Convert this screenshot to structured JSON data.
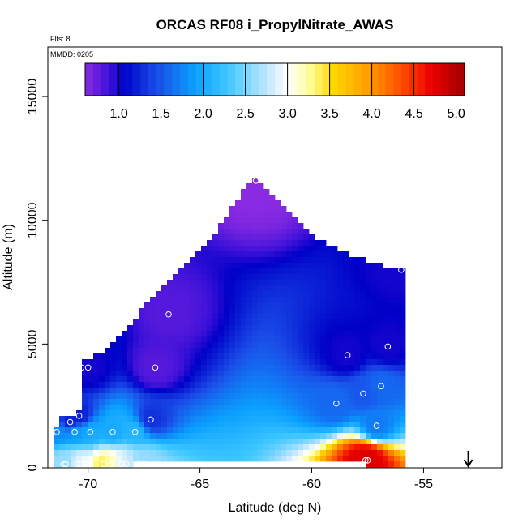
{
  "chart_data": {
    "type": "heatmap",
    "title": "ORCAS RF08 i_PropylNitrate_AWAS",
    "flights_note": "Flts: 8",
    "date_note": "MMDD: 0205",
    "xlabel": "Latitude (deg N)",
    "ylabel": "Altitude (m)",
    "xlim": [
      -71.8,
      -51.5
    ],
    "ylim": [
      0,
      17000
    ],
    "x_ticks": [
      -70,
      -65,
      -60,
      -55
    ],
    "x_tick_labels": [
      "-70",
      "-65",
      "-60",
      "-55"
    ],
    "y_ticks": [
      0,
      5000,
      10000,
      15000
    ],
    "y_tick_labels": [
      "0",
      "5000",
      "10000",
      "15000"
    ],
    "colorbar": {
      "range": [
        0.6,
        5.1
      ],
      "ticks": [
        1.0,
        1.5,
        2.0,
        2.5,
        3.0,
        3.5,
        4.0,
        4.5,
        5.0
      ],
      "tick_labels": [
        "1.0",
        "1.5",
        "2.0",
        "2.5",
        "3.0",
        "3.5",
        "4.0",
        "4.5",
        "5.0"
      ],
      "stops": [
        {
          "v": 0.6,
          "color": "#8a2be2"
        },
        {
          "v": 0.9,
          "color": "#3a10d8"
        },
        {
          "v": 1.05,
          "color": "#0000c8"
        },
        {
          "v": 1.45,
          "color": "#1a4de8"
        },
        {
          "v": 1.9,
          "color": "#0aa0ff"
        },
        {
          "v": 2.3,
          "color": "#40c8ff"
        },
        {
          "v": 2.75,
          "color": "#bfe6ff"
        },
        {
          "v": 3.0,
          "color": "#ffffff"
        },
        {
          "v": 3.25,
          "color": "#ffffa0"
        },
        {
          "v": 3.55,
          "color": "#ffd700"
        },
        {
          "v": 3.9,
          "color": "#ffa500"
        },
        {
          "v": 4.3,
          "color": "#ff5a00"
        },
        {
          "v": 4.7,
          "color": "#ee0000"
        },
        {
          "v": 5.1,
          "color": "#a00000"
        }
      ]
    },
    "domain_envelope": {
      "note": "approximate top altitude (m) of the interpolated field at each latitude",
      "lat": [
        -71.5,
        -71.2,
        -70.4,
        -70.3,
        -69.5,
        -68.5,
        -67.5,
        -66.5,
        -65.5,
        -64.5,
        -63.5,
        -62.8,
        -62.5,
        -62.2,
        -61.5,
        -60.5,
        -59.5,
        -58.5,
        -57.5,
        -56.8,
        -56.5,
        -56.2,
        -55.8
      ],
      "top_m": [
        1500,
        2000,
        2300,
        4200,
        4600,
        5400,
        6500,
        7400,
        8300,
        9300,
        10600,
        11500,
        11650,
        11500,
        10700,
        9800,
        9100,
        8700,
        8400,
        8200,
        8100,
        8100,
        8050
      ],
      "bottom_m": 0,
      "ground_gap_lat": [
        -67.9,
        -57.5
      ],
      "ground_gap_top_m": 200
    },
    "sample_points": [
      {
        "lat": -62.5,
        "alt": 11600,
        "value": 0.6
      },
      {
        "lat": -56.0,
        "alt": 8000,
        "value": 1.0
      },
      {
        "lat": -66.4,
        "alt": 6200,
        "value": 0.8
      },
      {
        "lat": -56.6,
        "alt": 4900,
        "value": 1.0
      },
      {
        "lat": -58.4,
        "alt": 4550,
        "value": 1.0
      },
      {
        "lat": -67.0,
        "alt": 4050,
        "value": 0.8
      },
      {
        "lat": -70.3,
        "alt": 4050,
        "value": 1.0
      },
      {
        "lat": -70.0,
        "alt": 4050,
        "value": 1.0
      },
      {
        "lat": -56.9,
        "alt": 3300,
        "value": 1.6
      },
      {
        "lat": -57.7,
        "alt": 3000,
        "value": 1.5
      },
      {
        "lat": -58.9,
        "alt": 2600,
        "value": 1.6
      },
      {
        "lat": -70.4,
        "alt": 2100,
        "value": 1.2
      },
      {
        "lat": -67.2,
        "alt": 1950,
        "value": 1.3
      },
      {
        "lat": -70.8,
        "alt": 1850,
        "value": 1.2
      },
      {
        "lat": -57.1,
        "alt": 1700,
        "value": 1.7
      },
      {
        "lat": -71.4,
        "alt": 1450,
        "value": 1.8
      },
      {
        "lat": -70.6,
        "alt": 1450,
        "value": 1.9
      },
      {
        "lat": -69.9,
        "alt": 1450,
        "value": 2.0
      },
      {
        "lat": -68.9,
        "alt": 1450,
        "value": 2.0
      },
      {
        "lat": -67.9,
        "alt": 1450,
        "value": 2.1
      },
      {
        "lat": -57.6,
        "alt": 300,
        "value": 4.8
      },
      {
        "lat": -57.5,
        "alt": 300,
        "value": 4.8
      },
      {
        "lat": -71.1,
        "alt": 150,
        "value": 2.6
      },
      {
        "lat": -71.0,
        "alt": 150,
        "value": 2.6
      },
      {
        "lat": -70.5,
        "alt": 150,
        "value": 2.8
      },
      {
        "lat": -70.3,
        "alt": 150,
        "value": 3.0
      },
      {
        "lat": -69.3,
        "alt": 150,
        "value": 3.4
      },
      {
        "lat": -69.0,
        "alt": 150,
        "value": 3.2
      },
      {
        "lat": -68.5,
        "alt": 150,
        "value": 2.9
      },
      {
        "lat": -68.3,
        "alt": 150,
        "value": 2.8
      },
      {
        "lat": -67.7,
        "alt": 150,
        "value": 2.6
      },
      {
        "lat": -67.5,
        "alt": 150,
        "value": 2.6
      }
    ],
    "arrow_marker": {
      "lat": -53.0,
      "direction": "down"
    }
  }
}
